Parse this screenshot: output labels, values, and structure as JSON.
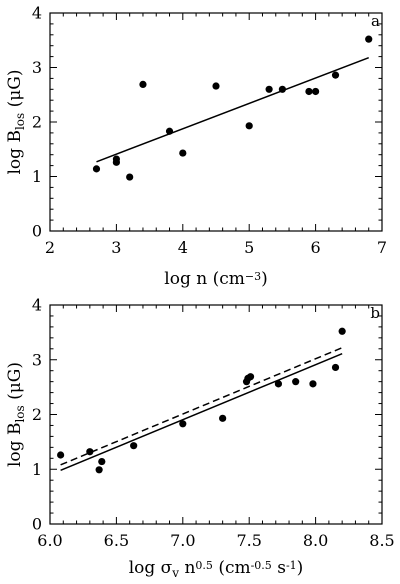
{
  "chart_data": [
    {
      "type": "scatter",
      "panel_label": "a",
      "xlabel": "log n (cm⁻³)",
      "ylabel": "log B_los (μG)",
      "xlim": [
        2,
        7
      ],
      "ylim": [
        0,
        4
      ],
      "x_ticks": [
        2,
        3,
        4,
        5,
        6,
        7
      ],
      "y_ticks": [
        0,
        1,
        2,
        3,
        4
      ],
      "grid": false,
      "series": [
        {
          "style": "points",
          "points": [
            {
              "x": 2.7,
              "y": 1.14
            },
            {
              "x": 3.0,
              "y": 1.32
            },
            {
              "x": 3.0,
              "y": 1.26
            },
            {
              "x": 3.2,
              "y": 0.99
            },
            {
              "x": 3.4,
              "y": 2.69
            },
            {
              "x": 3.8,
              "y": 1.83
            },
            {
              "x": 4.0,
              "y": 1.43
            },
            {
              "x": 4.5,
              "y": 2.66
            },
            {
              "x": 5.0,
              "y": 1.93
            },
            {
              "x": 5.3,
              "y": 2.6
            },
            {
              "x": 5.5,
              "y": 2.6
            },
            {
              "x": 5.9,
              "y": 2.56
            },
            {
              "x": 6.0,
              "y": 2.56
            },
            {
              "x": 6.3,
              "y": 2.86
            },
            {
              "x": 6.8,
              "y": 3.52
            }
          ]
        },
        {
          "style": "solid-line",
          "points": [
            {
              "x": 2.7,
              "y": 1.27
            },
            {
              "x": 6.8,
              "y": 3.18
            }
          ]
        }
      ]
    },
    {
      "type": "scatter",
      "panel_label": "b",
      "xlabel": "log σ_v n^0.5 (cm^-0.5 s^-1)",
      "ylabel": "log B_los (μG)",
      "xlim": [
        6.0,
        8.5
      ],
      "ylim": [
        0,
        4
      ],
      "x_ticks": [
        6.0,
        6.5,
        7.0,
        7.5,
        8.0,
        8.5
      ],
      "y_ticks": [
        0,
        1,
        2,
        3,
        4
      ],
      "grid": false,
      "series": [
        {
          "style": "points",
          "points": [
            {
              "x": 6.08,
              "y": 1.26
            },
            {
              "x": 6.3,
              "y": 1.32
            },
            {
              "x": 6.37,
              "y": 0.99
            },
            {
              "x": 6.39,
              "y": 1.14
            },
            {
              "x": 6.63,
              "y": 1.43
            },
            {
              "x": 7.0,
              "y": 1.83
            },
            {
              "x": 7.3,
              "y": 1.93
            },
            {
              "x": 7.48,
              "y": 2.6
            },
            {
              "x": 7.49,
              "y": 2.66
            },
            {
              "x": 7.51,
              "y": 2.69
            },
            {
              "x": 7.72,
              "y": 2.56
            },
            {
              "x": 7.85,
              "y": 2.6
            },
            {
              "x": 7.98,
              "y": 2.56
            },
            {
              "x": 8.15,
              "y": 2.86
            },
            {
              "x": 8.2,
              "y": 3.52
            }
          ]
        },
        {
          "style": "solid-line",
          "points": [
            {
              "x": 6.08,
              "y": 0.98
            },
            {
              "x": 8.2,
              "y": 3.11
            }
          ]
        },
        {
          "style": "dashed-line",
          "points": [
            {
              "x": 6.08,
              "y": 1.08
            },
            {
              "x": 8.2,
              "y": 3.22
            }
          ]
        }
      ]
    }
  ]
}
